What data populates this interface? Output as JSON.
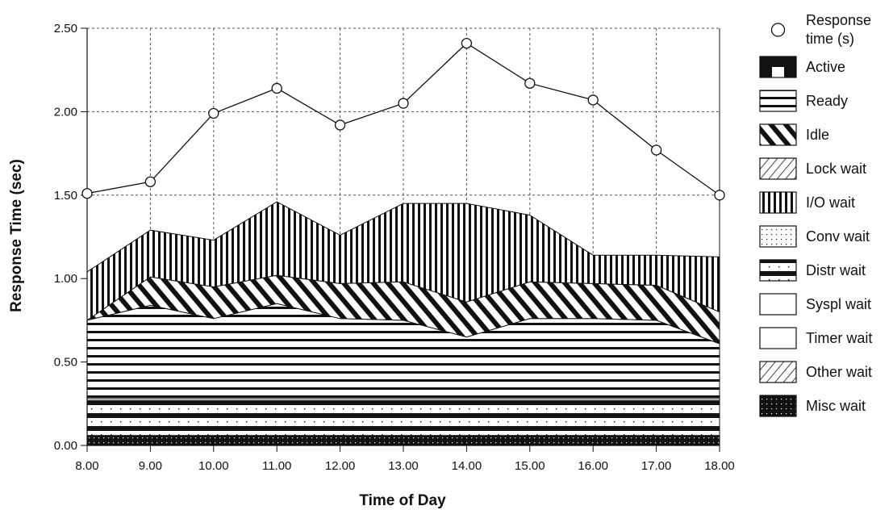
{
  "chart_data": {
    "type": "area",
    "xlabel": "Time of Day",
    "ylabel": "Response Time (sec)",
    "x": [
      "8.00",
      "9.00",
      "10.00",
      "11.00",
      "12.00",
      "13.00",
      "14.00",
      "15.00",
      "16.00",
      "17.00",
      "18.00"
    ],
    "yticks": [
      "0.00",
      "0.50",
      "1.00",
      "1.50",
      "2.00",
      "2.50"
    ],
    "ylim": [
      0,
      2.5
    ],
    "grid": true,
    "legend_position": "right",
    "stacked_layers": [
      {
        "name": "Misc wait",
        "pattern": "misc",
        "values": [
          0.06,
          0.06,
          0.06,
          0.06,
          0.06,
          0.06,
          0.06,
          0.06,
          0.06,
          0.06,
          0.06
        ]
      },
      {
        "name": "Other wait",
        "pattern": "hatch",
        "values": [
          0,
          0,
          0,
          0,
          0,
          0,
          0,
          0,
          0,
          0,
          0
        ]
      },
      {
        "name": "Timer wait",
        "pattern": "white",
        "values": [
          0,
          0,
          0,
          0,
          0,
          0,
          0,
          0,
          0,
          0,
          0
        ]
      },
      {
        "name": "Syspl wait",
        "pattern": "white",
        "values": [
          0,
          0,
          0,
          0,
          0,
          0,
          0,
          0,
          0,
          0,
          0
        ]
      },
      {
        "name": "Distr wait",
        "pattern": "distr",
        "values": [
          0.22,
          0.22,
          0.22,
          0.22,
          0.22,
          0.22,
          0.22,
          0.22,
          0.22,
          0.22,
          0.22
        ]
      },
      {
        "name": "Conv wait",
        "pattern": "conv",
        "values": [
          0,
          0,
          0,
          0,
          0,
          0,
          0,
          0,
          0,
          0,
          0
        ]
      },
      {
        "name": "Ready",
        "pattern": "horiz",
        "values": [
          0.47,
          0.56,
          0.48,
          0.57,
          0.48,
          0.47,
          0.37,
          0.48,
          0.48,
          0.47,
          0.33
        ]
      },
      {
        "name": "Idle",
        "pattern": "diag",
        "values": [
          0,
          0.17,
          0.19,
          0.17,
          0.21,
          0.23,
          0.21,
          0.22,
          0.21,
          0.21,
          0.19
        ]
      },
      {
        "name": "I/O wait",
        "pattern": "vert",
        "values": [
          0.29,
          0.28,
          0.28,
          0.44,
          0.29,
          0.47,
          0.59,
          0.4,
          0.17,
          0.18,
          0.33
        ]
      },
      {
        "name": "Lock wait",
        "pattern": "hatch",
        "values": [
          0,
          0,
          0,
          0,
          0,
          0,
          0,
          0,
          0,
          0,
          0
        ]
      },
      {
        "name": "Active",
        "pattern": "active",
        "values": [
          0,
          0,
          0,
          0,
          0,
          0,
          0,
          0,
          0,
          0,
          0
        ]
      }
    ],
    "series": [
      {
        "name": "Response time (s)",
        "values": [
          1.51,
          1.58,
          1.99,
          2.14,
          1.92,
          2.05,
          2.41,
          2.17,
          2.07,
          1.77,
          1.5
        ]
      }
    ],
    "legend": [
      {
        "label": "Response time (s)",
        "swatch": "circle",
        "lines": [
          "Response",
          "time (s)"
        ]
      },
      {
        "label": "Active",
        "swatch": "active"
      },
      {
        "label": "Ready",
        "swatch": "horiz"
      },
      {
        "label": "Idle",
        "swatch": "diag"
      },
      {
        "label": "Lock wait",
        "swatch": "hatch"
      },
      {
        "label": "I/O wait",
        "swatch": "vert"
      },
      {
        "label": "Conv wait",
        "swatch": "conv"
      },
      {
        "label": "Distr wait",
        "swatch": "distr"
      },
      {
        "label": "Syspl wait",
        "swatch": "white"
      },
      {
        "label": "Timer wait",
        "swatch": "white"
      },
      {
        "label": "Other wait",
        "swatch": "hatch"
      },
      {
        "label": "Misc wait",
        "swatch": "misc"
      }
    ]
  }
}
